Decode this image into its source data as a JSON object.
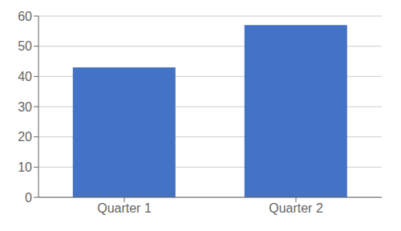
{
  "chart_data": {
    "type": "bar",
    "categories": [
      "Quarter 1",
      "Quarter 2"
    ],
    "values": [
      43,
      57
    ],
    "color": "#4472C4",
    "ylim": [
      0,
      60
    ],
    "yticks": [
      0,
      10,
      20,
      30,
      40,
      50,
      60
    ],
    "grid": true
  }
}
